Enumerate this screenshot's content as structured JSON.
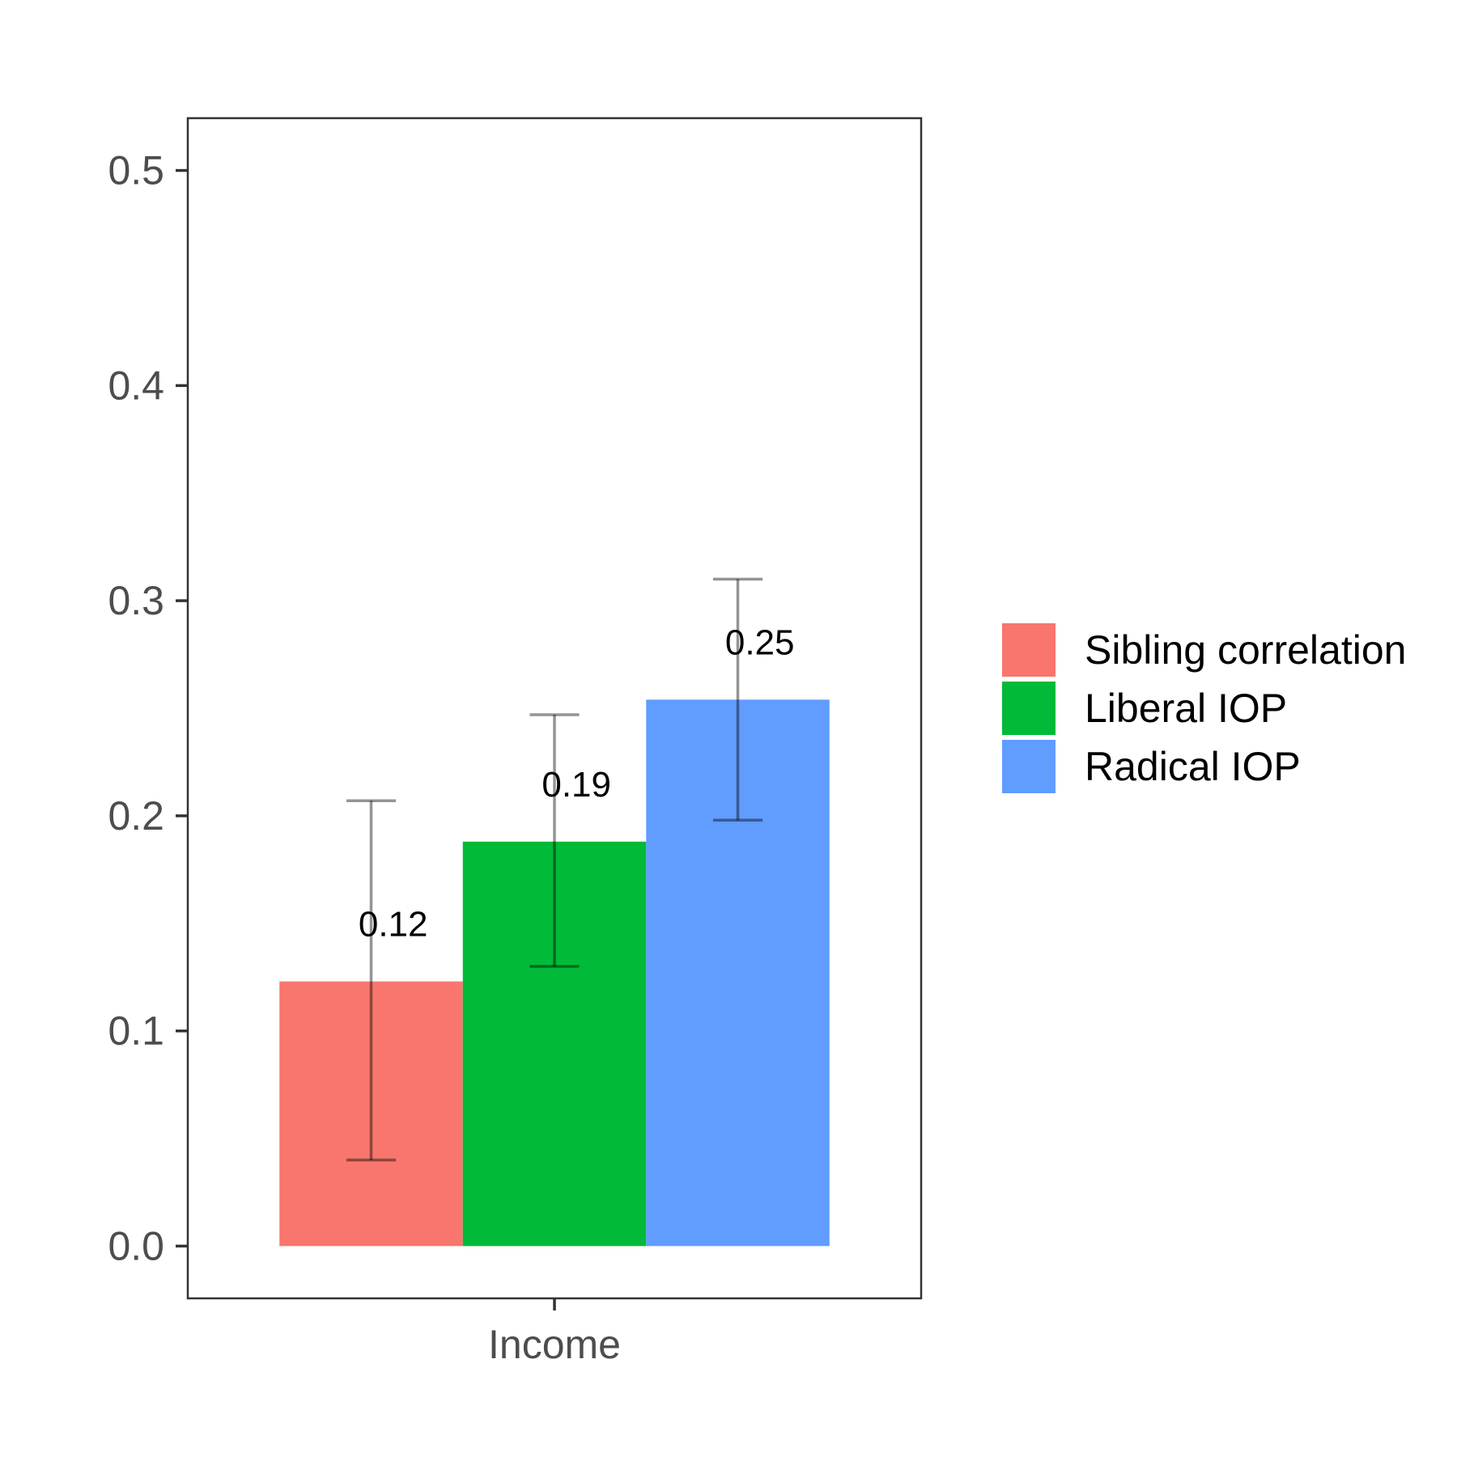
{
  "chart_data": {
    "type": "bar",
    "title": "",
    "xlabel": "",
    "ylabel": "",
    "categories": [
      "Income"
    ],
    "ylim": [
      -0.0243,
      0.5243
    ],
    "yticks": [
      0.0,
      0.1,
      0.2,
      0.3,
      0.4,
      0.5
    ],
    "ytick_labels": [
      "0.0",
      "0.1",
      "0.2",
      "0.3",
      "0.4",
      "0.5"
    ],
    "grid": false,
    "legend_position": "right",
    "series": [
      {
        "name": "Sibling correlation",
        "color": "#F8766D",
        "values": [
          0.123
        ],
        "error_low": [
          0.04
        ],
        "error_high": [
          0.207
        ],
        "label": "0.12"
      },
      {
        "name": "Liberal IOP",
        "color": "#00BA38",
        "values": [
          0.188
        ],
        "error_low": [
          0.13
        ],
        "error_high": [
          0.247
        ],
        "label": "0.19"
      },
      {
        "name": "Radical IOP",
        "color": "#619CFF",
        "values": [
          0.254
        ],
        "error_low": [
          0.198
        ],
        "error_high": [
          0.31
        ],
        "label": "0.25"
      }
    ]
  }
}
